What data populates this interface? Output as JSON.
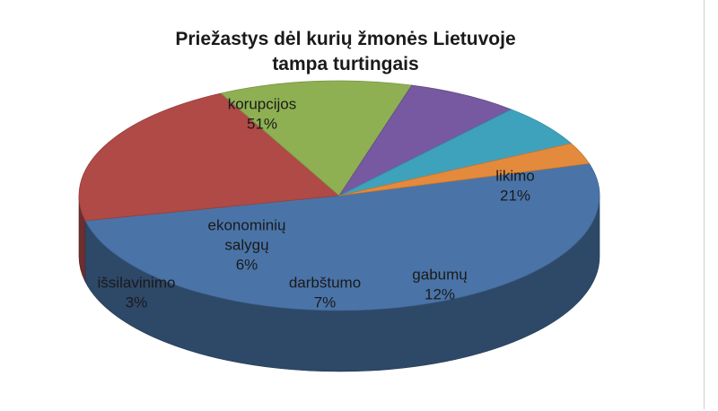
{
  "chart_data": {
    "type": "pie",
    "title_lines": [
      "Priežastys dėl kurių žmonės Lietuvoje",
      "tampa turtingais"
    ],
    "slices": [
      {
        "label": "korupcijos",
        "lines": [
          "korupcijos"
        ],
        "value": 51,
        "text": "51%",
        "color": "#4a74a8"
      },
      {
        "label": "likimo",
        "lines": [
          "likimo"
        ],
        "value": 21,
        "text": "21%",
        "color": "#b04a47"
      },
      {
        "label": "gabumų",
        "lines": [
          "gabumų"
        ],
        "value": 12,
        "text": "12%",
        "color": "#8eb052"
      },
      {
        "label": "darbštumo",
        "lines": [
          "darbštumo"
        ],
        "value": 7,
        "text": "7%",
        "color": "#7659a0"
      },
      {
        "label": "ekonominių salygų",
        "lines": [
          "ekonominių",
          "salygų"
        ],
        "value": 6,
        "text": "6%",
        "color": "#3fa2bd"
      },
      {
        "label": "išsilavinimo",
        "lines": [
          "išsilavinimo"
        ],
        "value": 3,
        "text": "3%",
        "color": "#e48a3c"
      }
    ]
  }
}
